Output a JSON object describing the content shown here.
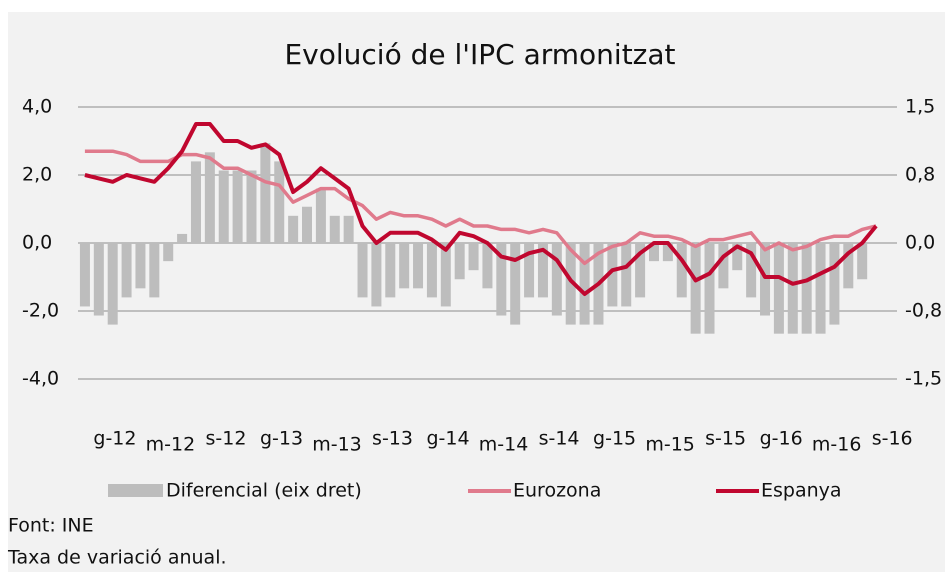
{
  "chart_data": {
    "type": "combo",
    "title": "Evolució de l'IPC armonitzat",
    "categories": [
      "g-12",
      null,
      null,
      null,
      "m-12",
      null,
      null,
      null,
      "s-12",
      null,
      null,
      null,
      "g-13",
      null,
      null,
      null,
      "m-13",
      null,
      null,
      null,
      "s-13",
      null,
      null,
      null,
      "g-14",
      null,
      null,
      null,
      "m-14",
      null,
      null,
      null,
      "s-14",
      null,
      null,
      null,
      "g-15",
      null,
      null,
      null,
      "m-15",
      null,
      null,
      null,
      "s-15",
      null,
      null,
      null,
      "g-16",
      null,
      null,
      null,
      "m-16",
      null,
      null,
      null,
      "s-16",
      null
    ],
    "series": [
      {
        "name": "Diferencial (eix dret)",
        "type": "bar",
        "axis": "y2",
        "color": "#bdbdbd",
        "values": [
          -0.7,
          -0.8,
          -0.9,
          -0.6,
          -0.5,
          -0.6,
          -0.2,
          0.1,
          0.9,
          1.0,
          0.8,
          0.8,
          0.8,
          1.1,
          0.9,
          0.3,
          0.4,
          0.6,
          0.3,
          0.3,
          -0.6,
          -0.7,
          -0.6,
          -0.5,
          -0.5,
          -0.6,
          -0.7,
          -0.4,
          -0.3,
          -0.5,
          -0.8,
          -0.9,
          -0.6,
          -0.6,
          -0.8,
          -0.9,
          -0.9,
          -0.9,
          -0.7,
          -0.7,
          -0.6,
          -0.2,
          -0.2,
          -0.6,
          -1.0,
          -1.0,
          -0.5,
          -0.3,
          -0.6,
          -0.8,
          -1.0,
          -1.0,
          -1.0,
          -1.0,
          -0.9,
          -0.5,
          -0.4,
          0.0
        ]
      },
      {
        "name": "Eurozona",
        "type": "line",
        "color": "#e07a8c",
        "values": [
          2.7,
          2.7,
          2.7,
          2.6,
          2.4,
          2.4,
          2.4,
          2.6,
          2.6,
          2.5,
          2.2,
          2.2,
          2.0,
          1.8,
          1.7,
          1.2,
          1.4,
          1.6,
          1.6,
          1.3,
          1.1,
          0.7,
          0.9,
          0.8,
          0.8,
          0.7,
          0.5,
          0.7,
          0.5,
          0.5,
          0.4,
          0.4,
          0.3,
          0.4,
          0.3,
          -0.2,
          -0.6,
          -0.3,
          -0.1,
          0.0,
          0.3,
          0.2,
          0.2,
          0.1,
          -0.1,
          0.1,
          0.1,
          0.2,
          0.3,
          -0.2,
          0.0,
          -0.2,
          -0.1,
          0.1,
          0.2,
          0.2,
          0.4,
          0.5
        ]
      },
      {
        "name": "Espanya",
        "type": "line",
        "color": "#c0072f",
        "values": [
          2.0,
          1.9,
          1.8,
          2.0,
          1.9,
          1.8,
          2.2,
          2.7,
          3.5,
          3.5,
          3.0,
          3.0,
          2.8,
          2.9,
          2.6,
          1.5,
          1.8,
          2.2,
          1.9,
          1.6,
          0.5,
          0.0,
          0.3,
          0.3,
          0.3,
          0.1,
          -0.2,
          0.3,
          0.2,
          0.0,
          -0.4,
          -0.5,
          -0.3,
          -0.2,
          -0.5,
          -1.1,
          -1.5,
          -1.2,
          -0.8,
          -0.7,
          -0.3,
          0.0,
          0.0,
          -0.5,
          -1.1,
          -0.9,
          -0.4,
          -0.1,
          -0.3,
          -1.0,
          -1.0,
          -1.2,
          -1.1,
          -0.9,
          -0.7,
          -0.3,
          0.0,
          0.5
        ]
      }
    ],
    "ylim": [
      -4,
      4
    ],
    "yticks": [
      {
        "value": 4,
        "label": "4,0"
      },
      {
        "value": 2,
        "label": "2,0"
      },
      {
        "value": 0,
        "label": "0,0"
      },
      {
        "value": -2,
        "label": "-2,0"
      },
      {
        "value": -4,
        "label": "-4,0"
      }
    ],
    "y2lim": [
      -1.5,
      1.5
    ],
    "y2ticks": [
      {
        "value": 1.5,
        "label": "1,5"
      },
      {
        "value": 0.75,
        "label": "0,8"
      },
      {
        "value": 0,
        "label": "0,0"
      },
      {
        "value": -0.75,
        "label": "-0,8"
      },
      {
        "value": -1.5,
        "label": "-1,5"
      }
    ],
    "grid": true,
    "notes": [
      "Font: INE",
      "Taxa de variació anual."
    ]
  }
}
